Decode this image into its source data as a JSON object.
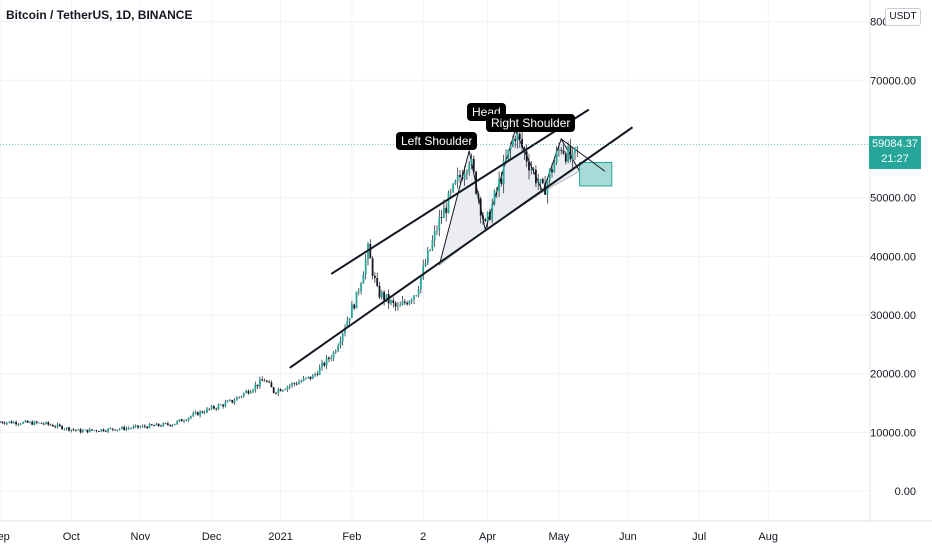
{
  "header": {
    "symbol_title": "Bitcoin / TetherUS, 1D, BINANCE",
    "currency_badge": "USDT"
  },
  "price_tag": {
    "price": "59084.37",
    "countdown": "21:27"
  },
  "annotations": {
    "left_shoulder": "Left Shoulder",
    "head": "Head",
    "right_shoulder": "Right Shoulder"
  },
  "colors": {
    "up": "#26a69a",
    "trendline": "#131722",
    "pattern_fill": "#e7eaf0",
    "target_box": "#26a69a"
  },
  "chart_data": {
    "type": "candlestick",
    "x_tick_labels": [
      "Sep",
      "Oct",
      "Nov",
      "Dec",
      "2021",
      "Feb",
      "2",
      "Apr",
      "May",
      "Jun",
      "Jul",
      "Aug"
    ],
    "y_tick_labels": [
      "0.00",
      "10000.00",
      "20000.00",
      "30000.00",
      "40000.00",
      "50000.00",
      "70000.00",
      "80000.00"
    ],
    "ylim": [
      -2000,
      80000
    ],
    "last_price": 59084.37,
    "price_path": [
      {
        "date": "2020-08-01",
        "price": 11800
      },
      {
        "date": "2020-08-20",
        "price": 11500
      },
      {
        "date": "2020-09-05",
        "price": 10200
      },
      {
        "date": "2020-09-25",
        "price": 10700
      },
      {
        "date": "2020-10-15",
        "price": 11400
      },
      {
        "date": "2020-10-25",
        "price": 13100
      },
      {
        "date": "2020-11-10",
        "price": 15300
      },
      {
        "date": "2020-11-24",
        "price": 19000
      },
      {
        "date": "2020-11-28",
        "price": 17000
      },
      {
        "date": "2020-12-15",
        "price": 19500
      },
      {
        "date": "2020-12-24",
        "price": 23500
      },
      {
        "date": "2021-01-03",
        "price": 33000
      },
      {
        "date": "2021-01-08",
        "price": 41000
      },
      {
        "date": "2021-01-12",
        "price": 34000
      },
      {
        "date": "2021-01-21",
        "price": 31000
      },
      {
        "date": "2021-01-29",
        "price": 34000
      },
      {
        "date": "2021-02-08",
        "price": 46000
      },
      {
        "date": "2021-02-21",
        "price": 57000
      },
      {
        "date": "2021-02-28",
        "price": 45000
      },
      {
        "date": "2021-03-13",
        "price": 61000
      },
      {
        "date": "2021-03-25",
        "price": 51000
      },
      {
        "date": "2021-04-02",
        "price": 59000
      },
      {
        "date": "2021-04-07",
        "price": 56000
      },
      {
        "date": "2021-04-10",
        "price": 59084
      }
    ],
    "trendlines": [
      {
        "name": "upper",
        "from": {
          "date": "2020-12-23",
          "price": 37000
        },
        "to": {
          "date": "2021-04-14",
          "price": 65000
        }
      },
      {
        "name": "lower",
        "from": {
          "date": "2020-12-05",
          "price": 21000
        },
        "to": {
          "date": "2021-05-03",
          "price": 62000
        }
      }
    ],
    "head_shoulders": {
      "left_shoulder": {
        "date": "2021-02-21",
        "price": 58000
      },
      "head": {
        "date": "2021-03-13",
        "price": 61500
      },
      "right_shoulder": {
        "date": "2021-04-02",
        "price": 60000
      },
      "neckline_lows": [
        {
          "date": "2021-02-08",
          "price": 38500
        },
        {
          "date": "2021-02-28",
          "price": 44500
        },
        {
          "date": "2021-03-25",
          "price": 51000
        },
        {
          "date": "2021-04-10",
          "price": 54500
        }
      ],
      "projected_move": {
        "from": {
          "date": "2021-04-02",
          "price": 60000
        },
        "to": {
          "date": "2021-04-21",
          "price": 54500
        }
      },
      "target_zone": {
        "date_from": "2021-04-10",
        "date_to": "2021-04-24",
        "price_low": 52000,
        "price_high": 56000
      }
    }
  }
}
